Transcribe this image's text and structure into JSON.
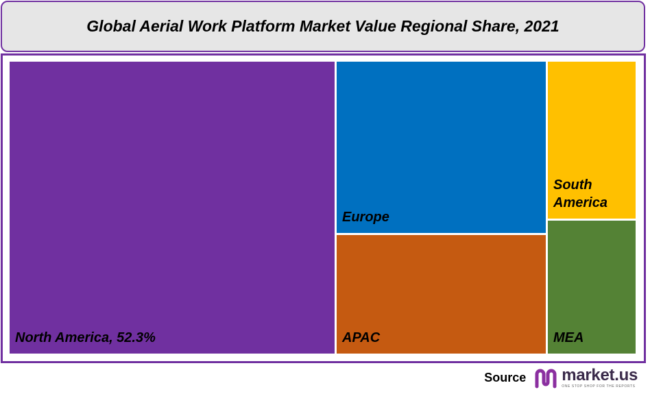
{
  "title": "Global Aerial Work Platform Market Value Regional Share, 2021",
  "chart_data": {
    "type": "treemap",
    "title": "Global Aerial Work Platform Market Value Regional Share, 2021",
    "items": [
      {
        "label": "North America, 52.3%",
        "region": "North America",
        "value": 52.3,
        "color": "#7030a0"
      },
      {
        "label": "Europe",
        "region": "Europe",
        "value": 20.0,
        "color": "#0070c0"
      },
      {
        "label": "APAC",
        "region": "APAC",
        "value": 13.7,
        "color": "#c55a11"
      },
      {
        "label": "South America",
        "region": "South America",
        "value": 7.0,
        "color": "#ffc000"
      },
      {
        "label": "MEA",
        "region": "MEA",
        "value": 7.0,
        "color": "#548235"
      }
    ]
  },
  "footer": {
    "source_label": "Source",
    "logo_text": "market.us",
    "logo_tagline": "ONE STOP SHOP FOR THE REPORTS"
  },
  "colors": {
    "frame": "#7030a0",
    "title_bg": "#e6e6e6"
  }
}
